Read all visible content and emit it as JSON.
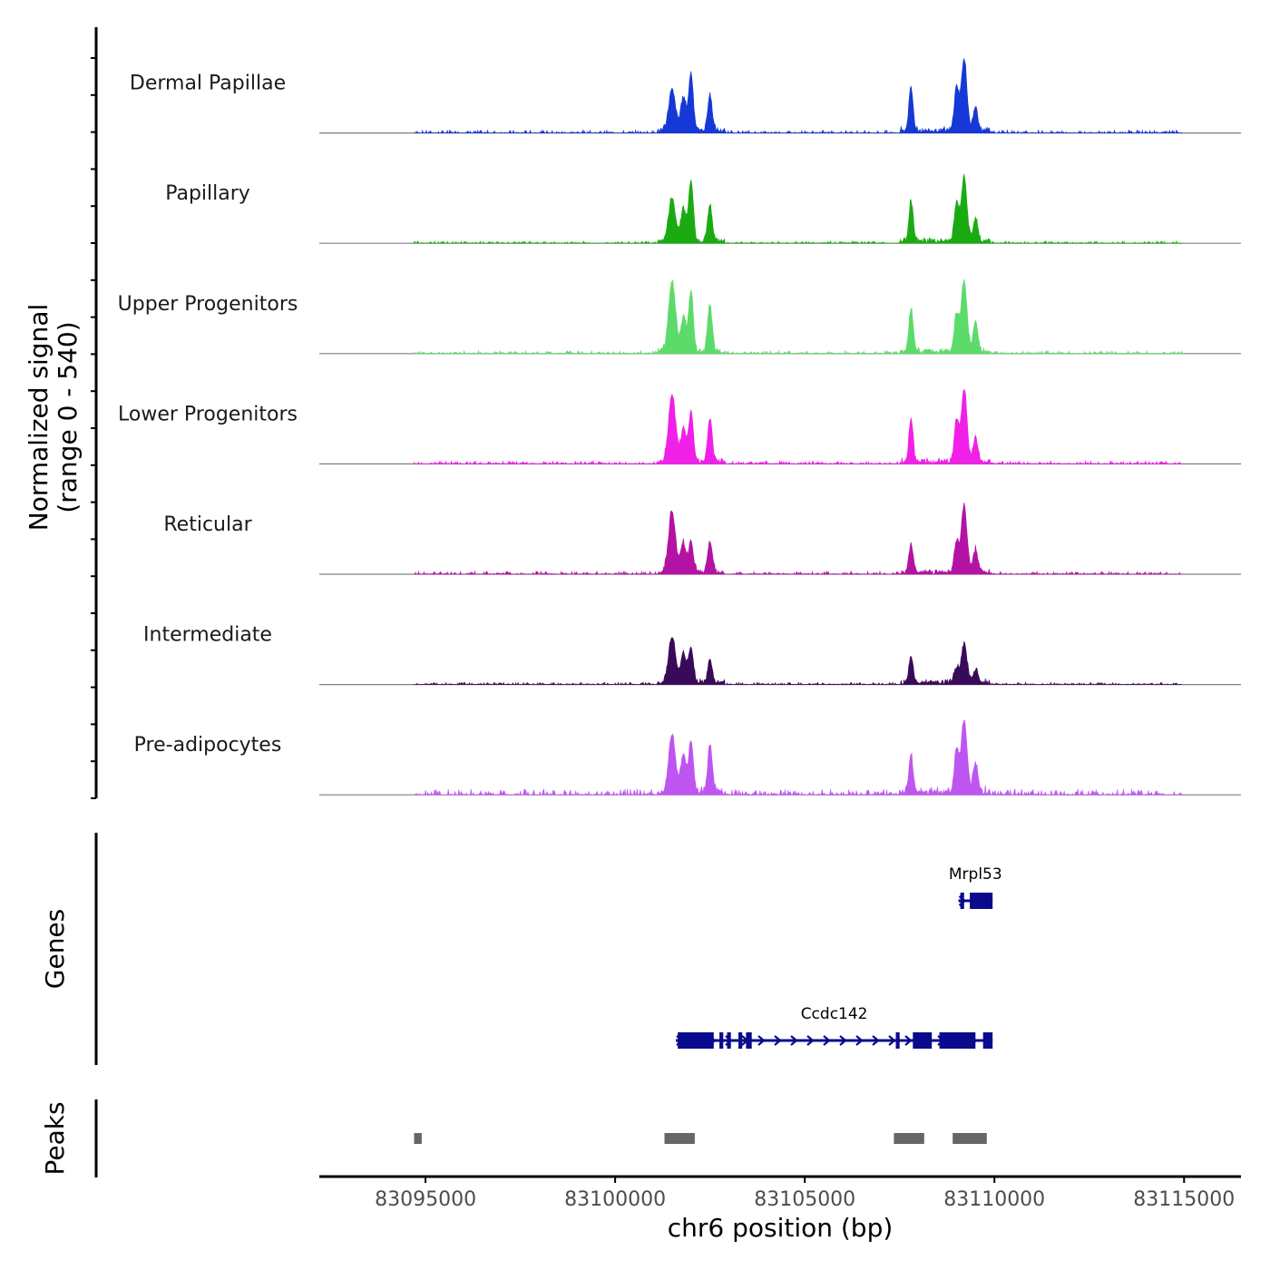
{
  "chart_data": {
    "type": "coverage",
    "x_label": "chr6 position (bp)",
    "xlim": [
      83092200,
      83116500
    ],
    "x_ticks": [
      {
        "value": 83095000,
        "label": "83095000"
      },
      {
        "value": 83100000,
        "label": "83100000"
      },
      {
        "value": 83105000,
        "label": "83105000"
      },
      {
        "value": 83110000,
        "label": "83110000"
      },
      {
        "value": 83115000,
        "label": "83115000"
      }
    ],
    "y_label_line1": "Normalized signal",
    "y_label_line2": "(range 0 - 540)",
    "y_range": [
      0,
      540
    ],
    "coverage_x_range": [
      83094700,
      83114950
    ],
    "tracks": [
      {
        "name": "Dermal Papillae",
        "color": "#1538d6",
        "peaks": [
          [
            83101500,
            0.55,
            90
          ],
          [
            83101800,
            0.45,
            70
          ],
          [
            83102000,
            0.78,
            60
          ],
          [
            83102500,
            0.48,
            60
          ],
          [
            83107800,
            0.58,
            55
          ],
          [
            83109000,
            0.58,
            60
          ],
          [
            83109200,
            0.96,
            75
          ],
          [
            83109500,
            0.32,
            60
          ]
        ],
        "noise": 0.04
      },
      {
        "name": "Papillary",
        "color": "#1aab12",
        "peaks": [
          [
            83101500,
            0.58,
            90
          ],
          [
            83101800,
            0.45,
            70
          ],
          [
            83102000,
            0.82,
            60
          ],
          [
            83102500,
            0.5,
            60
          ],
          [
            83107800,
            0.55,
            55
          ],
          [
            83109000,
            0.5,
            60
          ],
          [
            83109200,
            0.86,
            75
          ],
          [
            83109500,
            0.3,
            60
          ]
        ],
        "noise": 0.03
      },
      {
        "name": "Upper Progenitors",
        "color": "#5ddb6a",
        "peaks": [
          [
            83101500,
            0.96,
            90
          ],
          [
            83101800,
            0.45,
            70
          ],
          [
            83102000,
            0.82,
            60
          ],
          [
            83102500,
            0.62,
            60
          ],
          [
            83107800,
            0.58,
            55
          ],
          [
            83109000,
            0.5,
            60
          ],
          [
            83109200,
            0.96,
            75
          ],
          [
            83109500,
            0.4,
            60
          ]
        ],
        "noise": 0.04
      },
      {
        "name": "Lower Progenitors",
        "color": "#f020e8",
        "peaks": [
          [
            83101500,
            0.92,
            90
          ],
          [
            83101800,
            0.45,
            70
          ],
          [
            83102000,
            0.68,
            60
          ],
          [
            83102500,
            0.56,
            60
          ],
          [
            83107800,
            0.58,
            55
          ],
          [
            83109000,
            0.55,
            60
          ],
          [
            83109200,
            0.96,
            75
          ],
          [
            83109500,
            0.35,
            60
          ]
        ],
        "noise": 0.04
      },
      {
        "name": "Reticular",
        "color": "#b312a4",
        "peaks": [
          [
            83101500,
            0.82,
            90
          ],
          [
            83101800,
            0.4,
            70
          ],
          [
            83102000,
            0.4,
            60
          ],
          [
            83102500,
            0.42,
            60
          ],
          [
            83107800,
            0.36,
            55
          ],
          [
            83109000,
            0.4,
            60
          ],
          [
            83109200,
            0.9,
            75
          ],
          [
            83109500,
            0.3,
            60
          ]
        ],
        "noise": 0.04
      },
      {
        "name": "Intermediate",
        "color": "#3a0a5a",
        "peaks": [
          [
            83101500,
            0.62,
            90
          ],
          [
            83101800,
            0.4,
            70
          ],
          [
            83102000,
            0.48,
            60
          ],
          [
            83102500,
            0.3,
            60
          ],
          [
            83107800,
            0.36,
            55
          ],
          [
            83109000,
            0.2,
            60
          ],
          [
            83109200,
            0.52,
            75
          ],
          [
            83109500,
            0.18,
            60
          ]
        ],
        "noise": 0.03
      },
      {
        "name": "Pre-adipocytes",
        "color": "#bf55f0",
        "peaks": [
          [
            83101500,
            0.78,
            90
          ],
          [
            83101800,
            0.52,
            70
          ],
          [
            83102000,
            0.68,
            60
          ],
          [
            83102500,
            0.62,
            60
          ],
          [
            83107800,
            0.52,
            55
          ],
          [
            83109000,
            0.58,
            60
          ],
          [
            83109200,
            0.98,
            75
          ],
          [
            83109500,
            0.4,
            60
          ]
        ],
        "noise": 0.08
      }
    ],
    "genes_label": "Genes",
    "genes": [
      {
        "name": "Mrpl53",
        "color": "#0a0a8c",
        "start": 83109050,
        "end": 83109950,
        "exons": [
          [
            83109100,
            83109200
          ],
          [
            83109350,
            83109950
          ]
        ]
      },
      {
        "name": "Ccdc142",
        "color": "#0a0a8c",
        "start": 83101600,
        "end": 83109950,
        "exons": [
          [
            83101650,
            83102600
          ],
          [
            83102750,
            83102850
          ],
          [
            83102950,
            83103050
          ],
          [
            83103250,
            83103350
          ],
          [
            83103450,
            83103600
          ],
          [
            83107400,
            83107500
          ],
          [
            83107850,
            83108350
          ],
          [
            83108550,
            83109500
          ],
          [
            83109700,
            83109950
          ]
        ]
      }
    ],
    "peaks_label": "Peaks",
    "peak_regions": [
      [
        83094700,
        83094900
      ],
      [
        83101300,
        83102100
      ],
      [
        83107350,
        83108150
      ],
      [
        83108900,
        83109800
      ]
    ]
  }
}
